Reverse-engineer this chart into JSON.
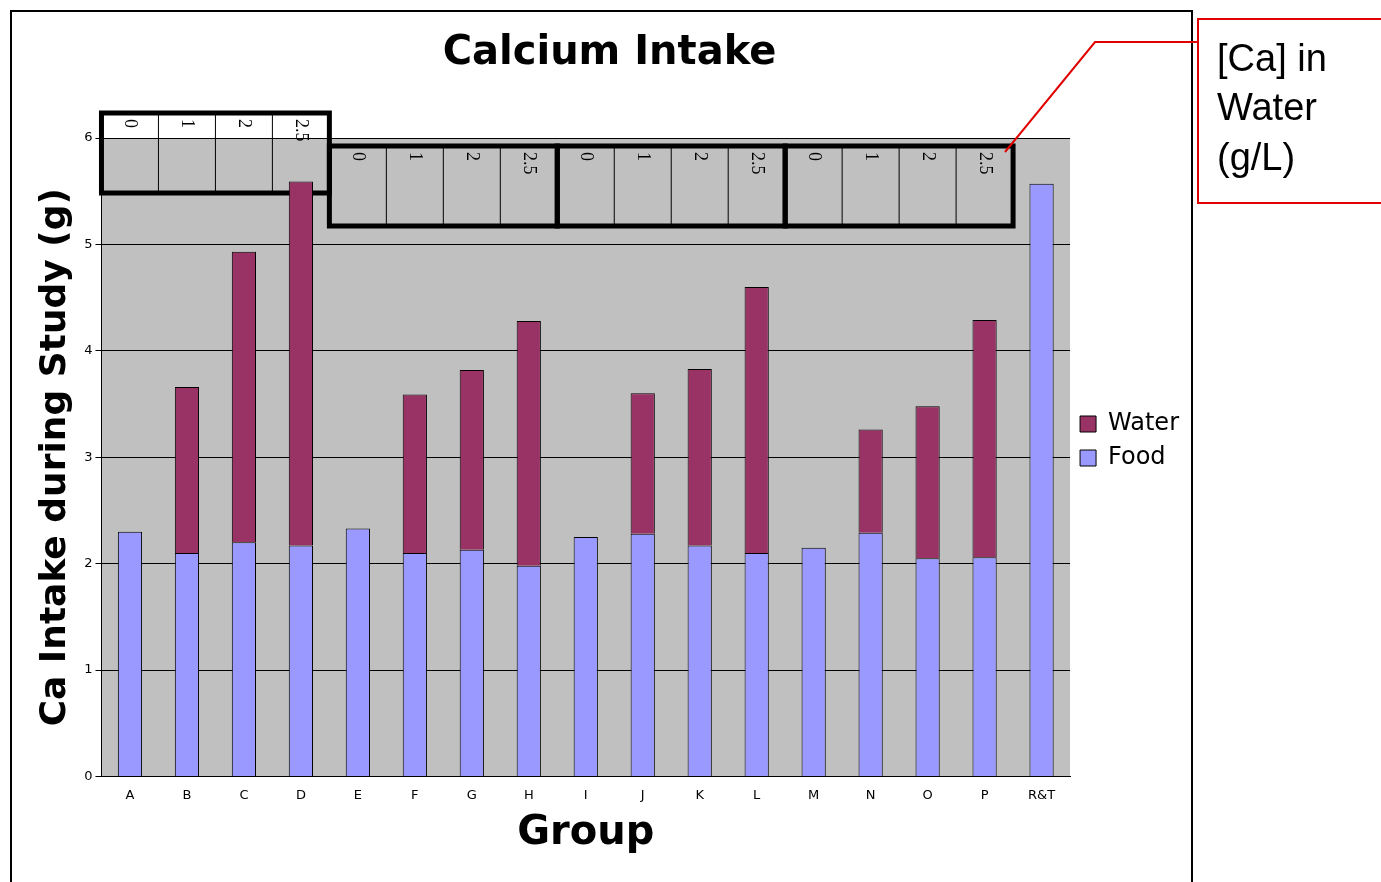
{
  "chart_data": {
    "type": "bar",
    "title": "Calcium Intake",
    "xlabel": "Group",
    "ylabel": "Ca Intake during Study (g)",
    "categories": [
      "A",
      "B",
      "C",
      "D",
      "E",
      "F",
      "G",
      "H",
      "I",
      "J",
      "K",
      "L",
      "M",
      "N",
      "O",
      "P",
      "R&T"
    ],
    "stacked": true,
    "series": [
      {
        "name": "Food",
        "color": "#9999ff",
        "values": [
          2.3,
          2.1,
          2.2,
          2.17,
          2.33,
          2.1,
          2.13,
          1.98,
          2.25,
          2.28,
          2.17,
          2.1,
          2.15,
          2.29,
          2.05,
          2.06,
          5.57
        ]
      },
      {
        "name": "Water",
        "color": "#993366",
        "values": [
          null,
          1.56,
          2.73,
          3.42,
          null,
          1.49,
          1.69,
          2.3,
          null,
          1.32,
          1.66,
          2.5,
          null,
          0.97,
          1.43,
          2.23,
          null
        ]
      }
    ],
    "ylim": [
      0,
      6
    ],
    "yticks": [
      0,
      1,
      2,
      3,
      4,
      5,
      6
    ],
    "grid": "y",
    "legend": "right",
    "annotations": [
      "[Ca] in Water (g/L)",
      "0",
      "1",
      "2",
      "2.5",
      "0",
      "1",
      "2",
      "2.5",
      "0",
      "1",
      "2",
      "2.5",
      "0",
      "1",
      "2",
      "2.5"
    ]
  }
}
